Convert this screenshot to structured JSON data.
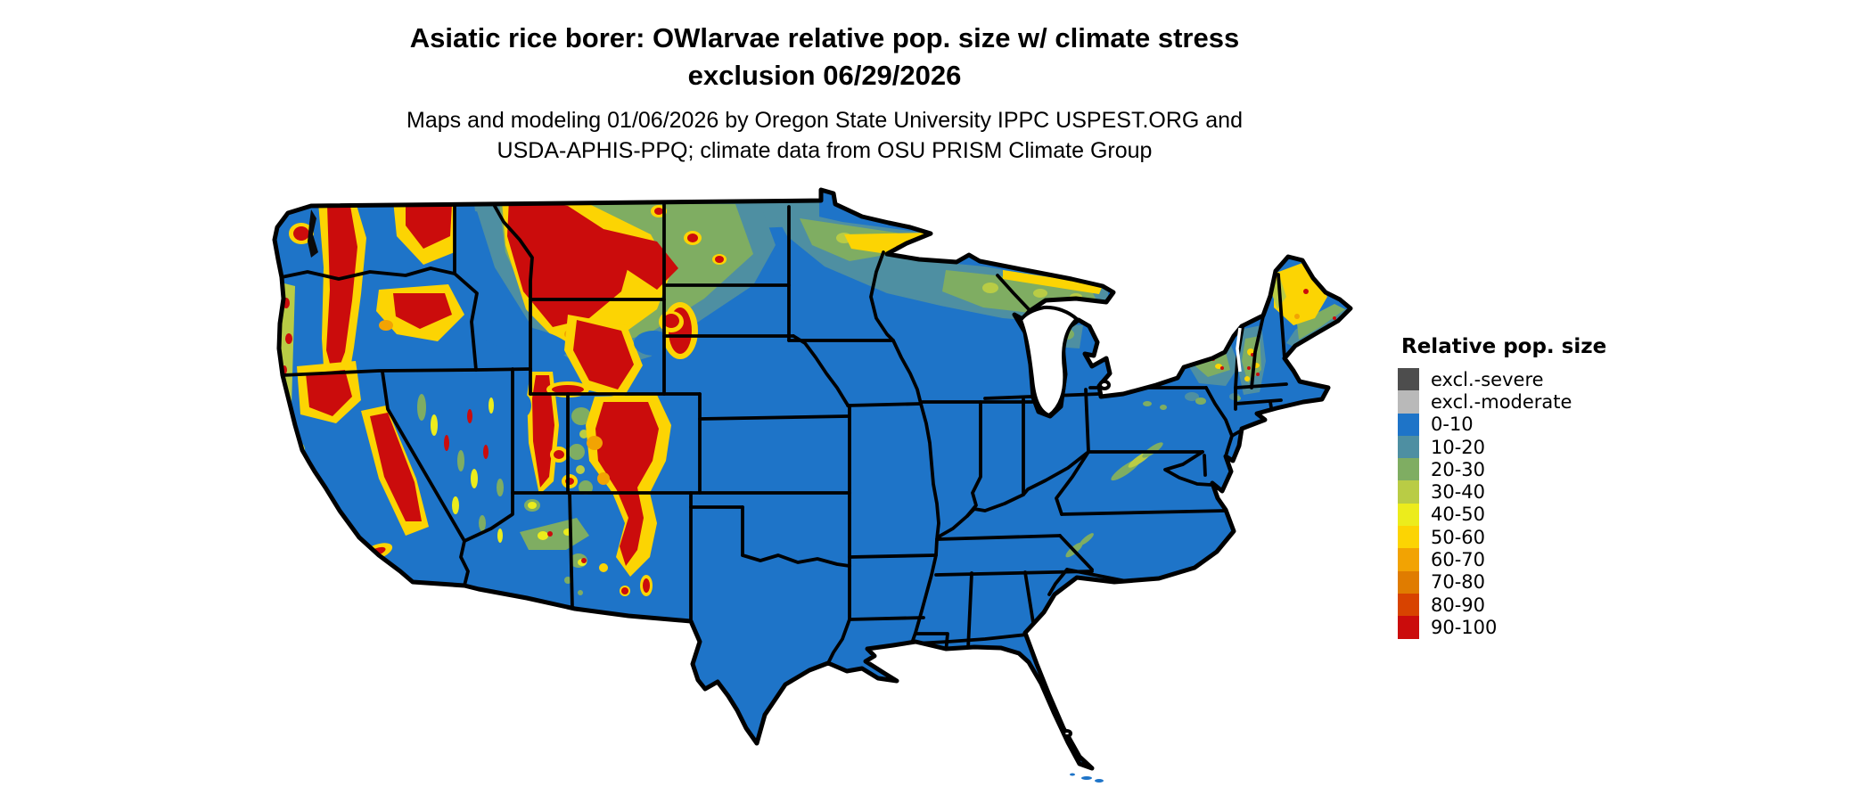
{
  "header": {
    "title_line1": "Asiatic rice borer: OWlarvae relative pop. size w/ climate stress",
    "title_line2": "exclusion 06/29/2026",
    "subtitle_line1": "Maps and modeling 01/06/2026 by Oregon State University IPPC USPEST.ORG and",
    "subtitle_line2": "USDA-APHIS-PPQ; climate data from OSU PRISM Climate Group"
  },
  "map": {
    "region": "Continental United States with state boundaries",
    "base_color": "#1e74c8",
    "boundary_color": "#000000",
    "water_color": "#ffffff"
  },
  "legend": {
    "title": "Relative pop. size",
    "items": [
      {
        "label": "excl.-severe",
        "color": "#4d4d4d"
      },
      {
        "label": "excl.-moderate",
        "color": "#b9b9b9"
      },
      {
        "label": "0-10",
        "color": "#1e74c8"
      },
      {
        "label": "10-20",
        "color": "#4e8fa2"
      },
      {
        "label": "20-30",
        "color": "#7fad62"
      },
      {
        "label": "30-40",
        "color": "#b9cc45"
      },
      {
        "label": "40-50",
        "color": "#ecec1c"
      },
      {
        "label": "50-60",
        "color": "#fcd403"
      },
      {
        "label": "60-70",
        "color": "#f2a303"
      },
      {
        "label": "70-80",
        "color": "#e07c00"
      },
      {
        "label": "80-90",
        "color": "#d84300"
      },
      {
        "label": "90-100",
        "color": "#cb0c0c"
      }
    ]
  }
}
